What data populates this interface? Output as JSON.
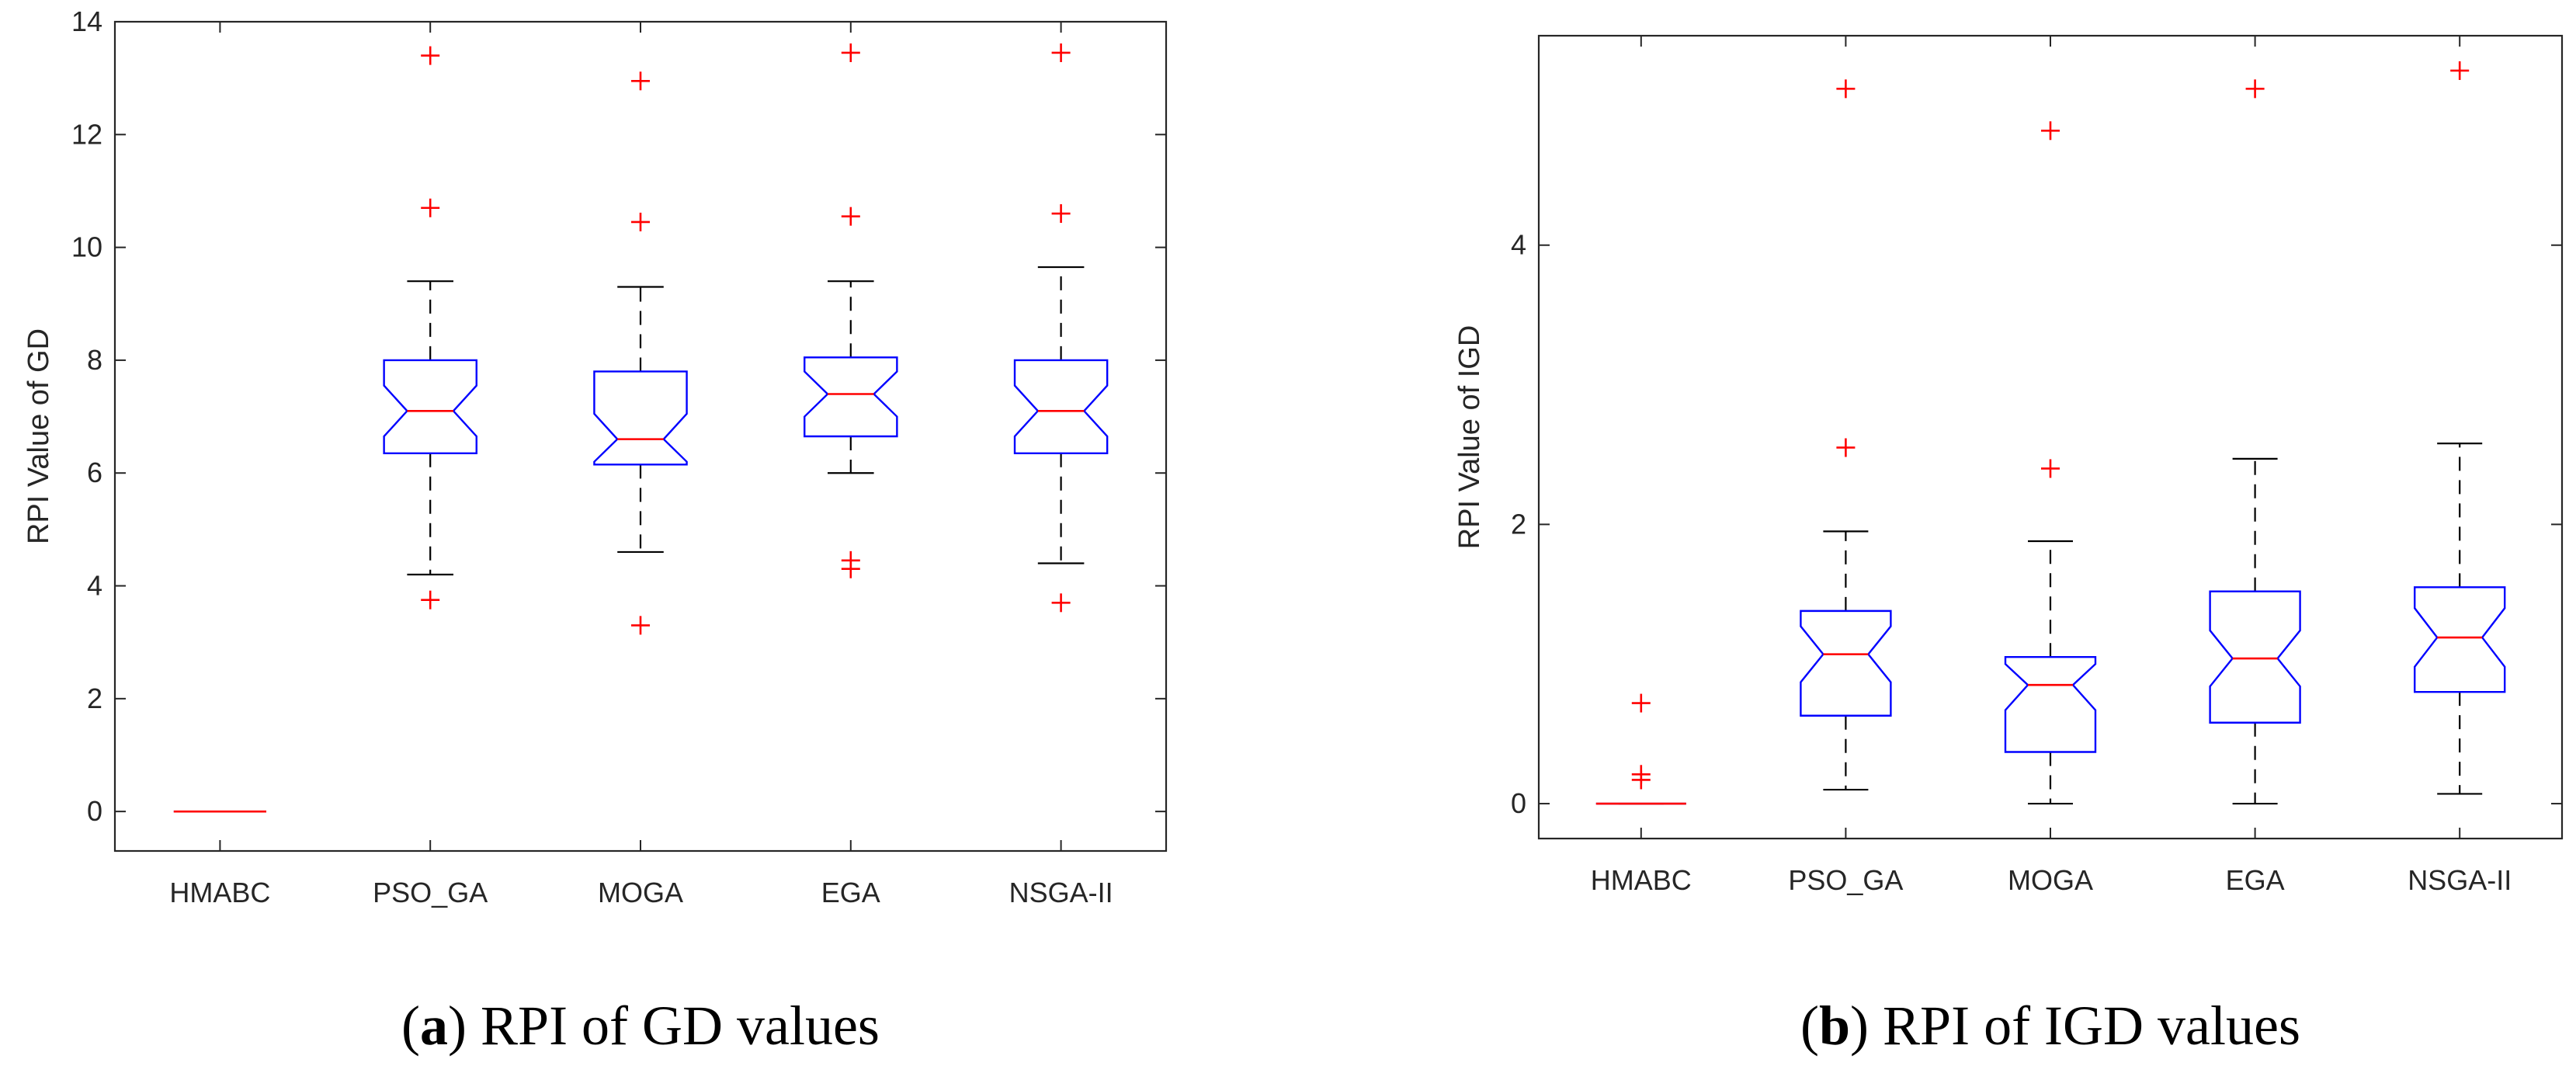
{
  "chart_data": [
    {
      "type": "boxplot",
      "notched": true,
      "categories": [
        "HMABC",
        "PSO_GA",
        "MOGA",
        "EGA",
        "NSGA-II"
      ],
      "ylabel": "RPI Value of GD",
      "ylim": [
        -0.7,
        14
      ],
      "yticks": [
        0,
        2,
        4,
        6,
        8,
        10,
        12,
        14
      ],
      "caption": {
        "letter": "a",
        "text": "RPI of GD values"
      },
      "colors": {
        "box": "#0000ff",
        "median": "#ff0000",
        "whisker": "#000000",
        "outlier": "#ff0000",
        "axis": "#262626"
      },
      "boxes": [
        {
          "name": "HMABC",
          "q1": 0,
          "median": 0,
          "q3": 0,
          "whisker_low": 0,
          "whisker_high": 0,
          "notch_low": 0,
          "notch_high": 0,
          "outliers": []
        },
        {
          "name": "PSO_GA",
          "q1": 6.35,
          "median": 7.1,
          "q3": 8.0,
          "whisker_low": 4.2,
          "whisker_high": 9.4,
          "notch_low": 6.65,
          "notch_high": 7.55,
          "outliers": [
            3.75,
            10.7,
            13.4
          ]
        },
        {
          "name": "MOGA",
          "q1": 6.15,
          "median": 6.6,
          "q3": 7.8,
          "whisker_low": 4.6,
          "whisker_high": 9.3,
          "notch_low": 6.2,
          "notch_high": 7.05,
          "outliers": [
            3.3,
            10.45,
            12.95
          ]
        },
        {
          "name": "EGA",
          "q1": 6.65,
          "median": 7.4,
          "q3": 8.05,
          "whisker_low": 6.0,
          "whisker_high": 9.4,
          "notch_low": 7.0,
          "notch_high": 7.8,
          "outliers": [
            4.3,
            4.45,
            10.55,
            13.45
          ]
        },
        {
          "name": "NSGA-II",
          "q1": 6.35,
          "median": 7.1,
          "q3": 8.0,
          "whisker_low": 4.4,
          "whisker_high": 9.65,
          "notch_low": 6.65,
          "notch_high": 7.55,
          "outliers": [
            3.7,
            10.6,
            13.45
          ]
        }
      ]
    },
    {
      "type": "boxplot",
      "notched": true,
      "categories": [
        "HMABC",
        "PSO_GA",
        "MOGA",
        "EGA",
        "NSGA-II"
      ],
      "ylabel": "RPI Value of IGD",
      "ylim": [
        -0.25,
        5.5
      ],
      "yticks": [
        0,
        2,
        4
      ],
      "caption": {
        "letter": "b",
        "text": "RPI of IGD values"
      },
      "colors": {
        "box": "#0000ff",
        "median": "#ff0000",
        "whisker": "#000000",
        "outlier": "#ff0000",
        "axis": "#262626"
      },
      "boxes": [
        {
          "name": "HMABC",
          "q1": 0,
          "median": 0,
          "q3": 0,
          "whisker_low": 0,
          "whisker_high": 0,
          "notch_low": 0,
          "notch_high": 0,
          "outliers": [
            0.17,
            0.21,
            0.72
          ]
        },
        {
          "name": "PSO_GA",
          "q1": 0.63,
          "median": 1.07,
          "q3": 1.38,
          "whisker_low": 0.1,
          "whisker_high": 1.95,
          "notch_low": 0.87,
          "notch_high": 1.27,
          "outliers": [
            2.55,
            5.12
          ]
        },
        {
          "name": "MOGA",
          "q1": 0.37,
          "median": 0.85,
          "q3": 1.05,
          "whisker_low": 0.0,
          "whisker_high": 1.88,
          "notch_low": 0.67,
          "notch_high": 1.0,
          "outliers": [
            2.4,
            4.82
          ]
        },
        {
          "name": "EGA",
          "q1": 0.58,
          "median": 1.04,
          "q3": 1.52,
          "whisker_low": 0.0,
          "whisker_high": 2.47,
          "notch_low": 0.84,
          "notch_high": 1.24,
          "outliers": [
            5.12
          ]
        },
        {
          "name": "NSGA-II",
          "q1": 0.8,
          "median": 1.19,
          "q3": 1.55,
          "whisker_low": 0.07,
          "whisker_high": 2.58,
          "notch_low": 0.98,
          "notch_high": 1.4,
          "outliers": [
            5.25
          ]
        }
      ]
    }
  ]
}
